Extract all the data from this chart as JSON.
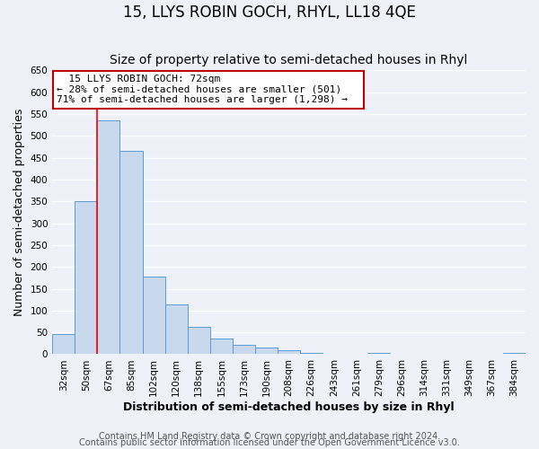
{
  "title": "15, LLYS ROBIN GOCH, RHYL, LL18 4QE",
  "subtitle": "Size of property relative to semi-detached houses in Rhyl",
  "xlabel": "Distribution of semi-detached houses by size in Rhyl",
  "ylabel": "Number of semi-detached properties",
  "bin_labels": [
    "32sqm",
    "50sqm",
    "67sqm",
    "85sqm",
    "102sqm",
    "120sqm",
    "138sqm",
    "155sqm",
    "173sqm",
    "190sqm",
    "208sqm",
    "226sqm",
    "243sqm",
    "261sqm",
    "279sqm",
    "296sqm",
    "314sqm",
    "331sqm",
    "349sqm",
    "367sqm",
    "384sqm"
  ],
  "bar_values": [
    47,
    350,
    535,
    465,
    178,
    115,
    62,
    35,
    22,
    15,
    10,
    3,
    1,
    0,
    2,
    0,
    0,
    0,
    1,
    0,
    2
  ],
  "bar_color": "#c9d9ed",
  "bar_edge_color": "#5b9bd5",
  "red_line_index": 2,
  "ylim": [
    0,
    650
  ],
  "yticks": [
    0,
    50,
    100,
    150,
    200,
    250,
    300,
    350,
    400,
    450,
    500,
    550,
    600,
    650
  ],
  "annotation_title": "15 LLYS ROBIN GOCH: 72sqm",
  "annotation_line1": "← 28% of semi-detached houses are smaller (501)",
  "annotation_line2": "71% of semi-detached houses are larger (1,298) →",
  "annotation_box_color": "#ffffff",
  "annotation_box_edge": "#c00000",
  "footer1": "Contains HM Land Registry data © Crown copyright and database right 2024.",
  "footer2": "Contains public sector information licensed under the Open Government Licence v3.0.",
  "background_color": "#eef2f8",
  "plot_background": "#eef2f8",
  "grid_color": "#ffffff",
  "title_fontsize": 12,
  "subtitle_fontsize": 10,
  "axis_label_fontsize": 9,
  "tick_fontsize": 7.5,
  "footer_fontsize": 7,
  "annotation_fontsize": 8
}
